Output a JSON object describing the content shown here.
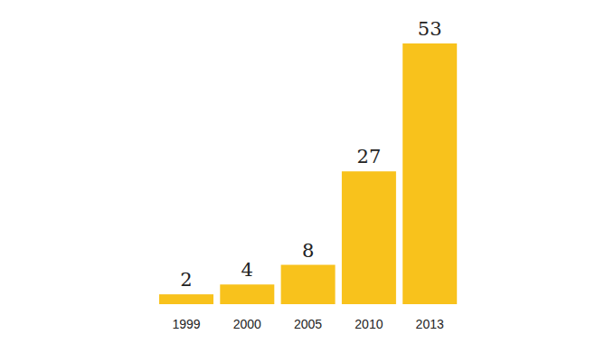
{
  "chart_data": {
    "type": "bar",
    "categories": [
      "1999",
      "2000",
      "2005",
      "2010",
      "2013"
    ],
    "values": [
      2,
      4,
      8,
      27,
      53
    ],
    "color": "#f8c21c",
    "ylim": [
      0,
      53
    ],
    "grid": false,
    "data_labels": true,
    "tick_labels": "x"
  }
}
